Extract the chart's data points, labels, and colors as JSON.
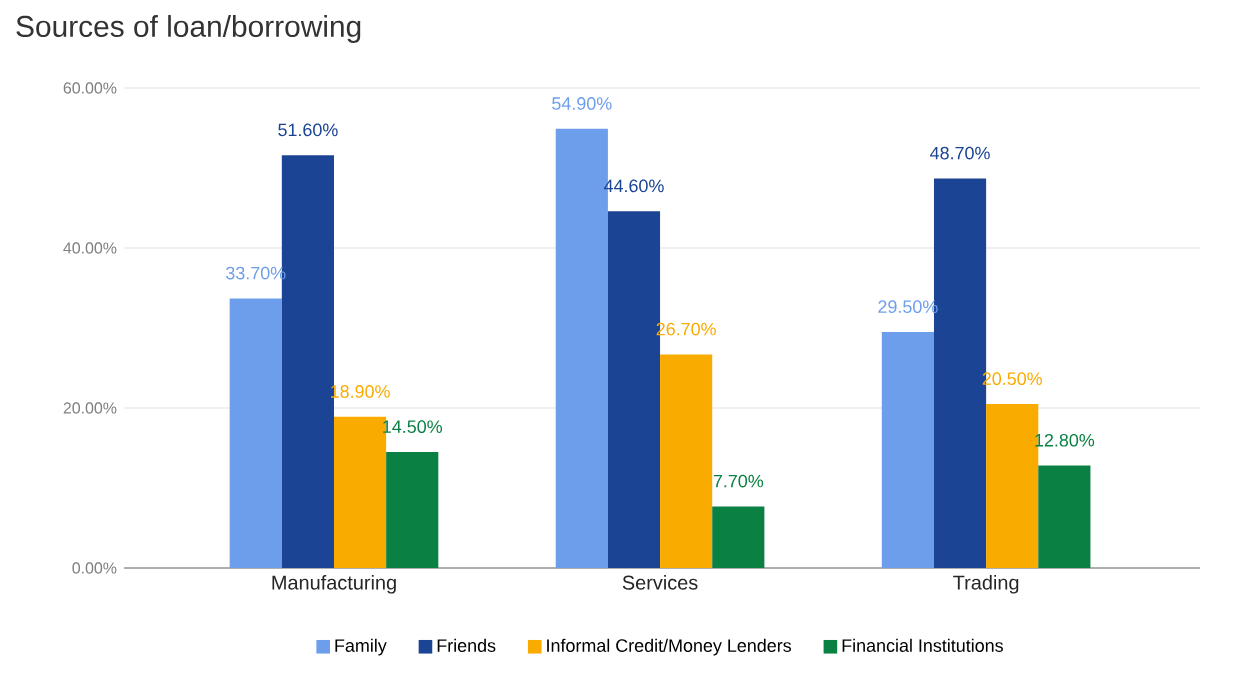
{
  "chart_data": {
    "type": "bar",
    "title": "Sources of loan/borrowing",
    "categories": [
      "Manufacturing",
      "Services",
      "Trading"
    ],
    "series": [
      {
        "name": "Family",
        "color": "#6d9eeb",
        "values": [
          33.7,
          54.9,
          29.5
        ],
        "value_labels": [
          "33.70%",
          "54.90%",
          "29.50%"
        ]
      },
      {
        "name": "Friends",
        "color": "#1c4494",
        "values": [
          51.6,
          44.6,
          48.7
        ],
        "value_labels": [
          "51.60%",
          "44.60%",
          "48.70%"
        ]
      },
      {
        "name": "Informal Credit/Money Lenders",
        "color": "#f9ab00",
        "values": [
          18.9,
          26.7,
          20.5
        ],
        "value_labels": [
          "18.90%",
          "26.70%",
          "20.50%"
        ]
      },
      {
        "name": "Financial Institutions",
        "color": "#0b8043",
        "values": [
          14.5,
          7.7,
          12.8
        ],
        "value_labels": [
          "14.50%",
          "7.70%",
          "12.80%"
        ]
      }
    ],
    "ylim": [
      0,
      60
    ],
    "yticks": [
      {
        "value": 0,
        "label": "0.00%"
      },
      {
        "value": 20,
        "label": "20.00%"
      },
      {
        "value": 40,
        "label": "40.00%"
      },
      {
        "value": 60,
        "label": "60.00%"
      }
    ],
    "grid": "y",
    "legend": "bottom"
  }
}
